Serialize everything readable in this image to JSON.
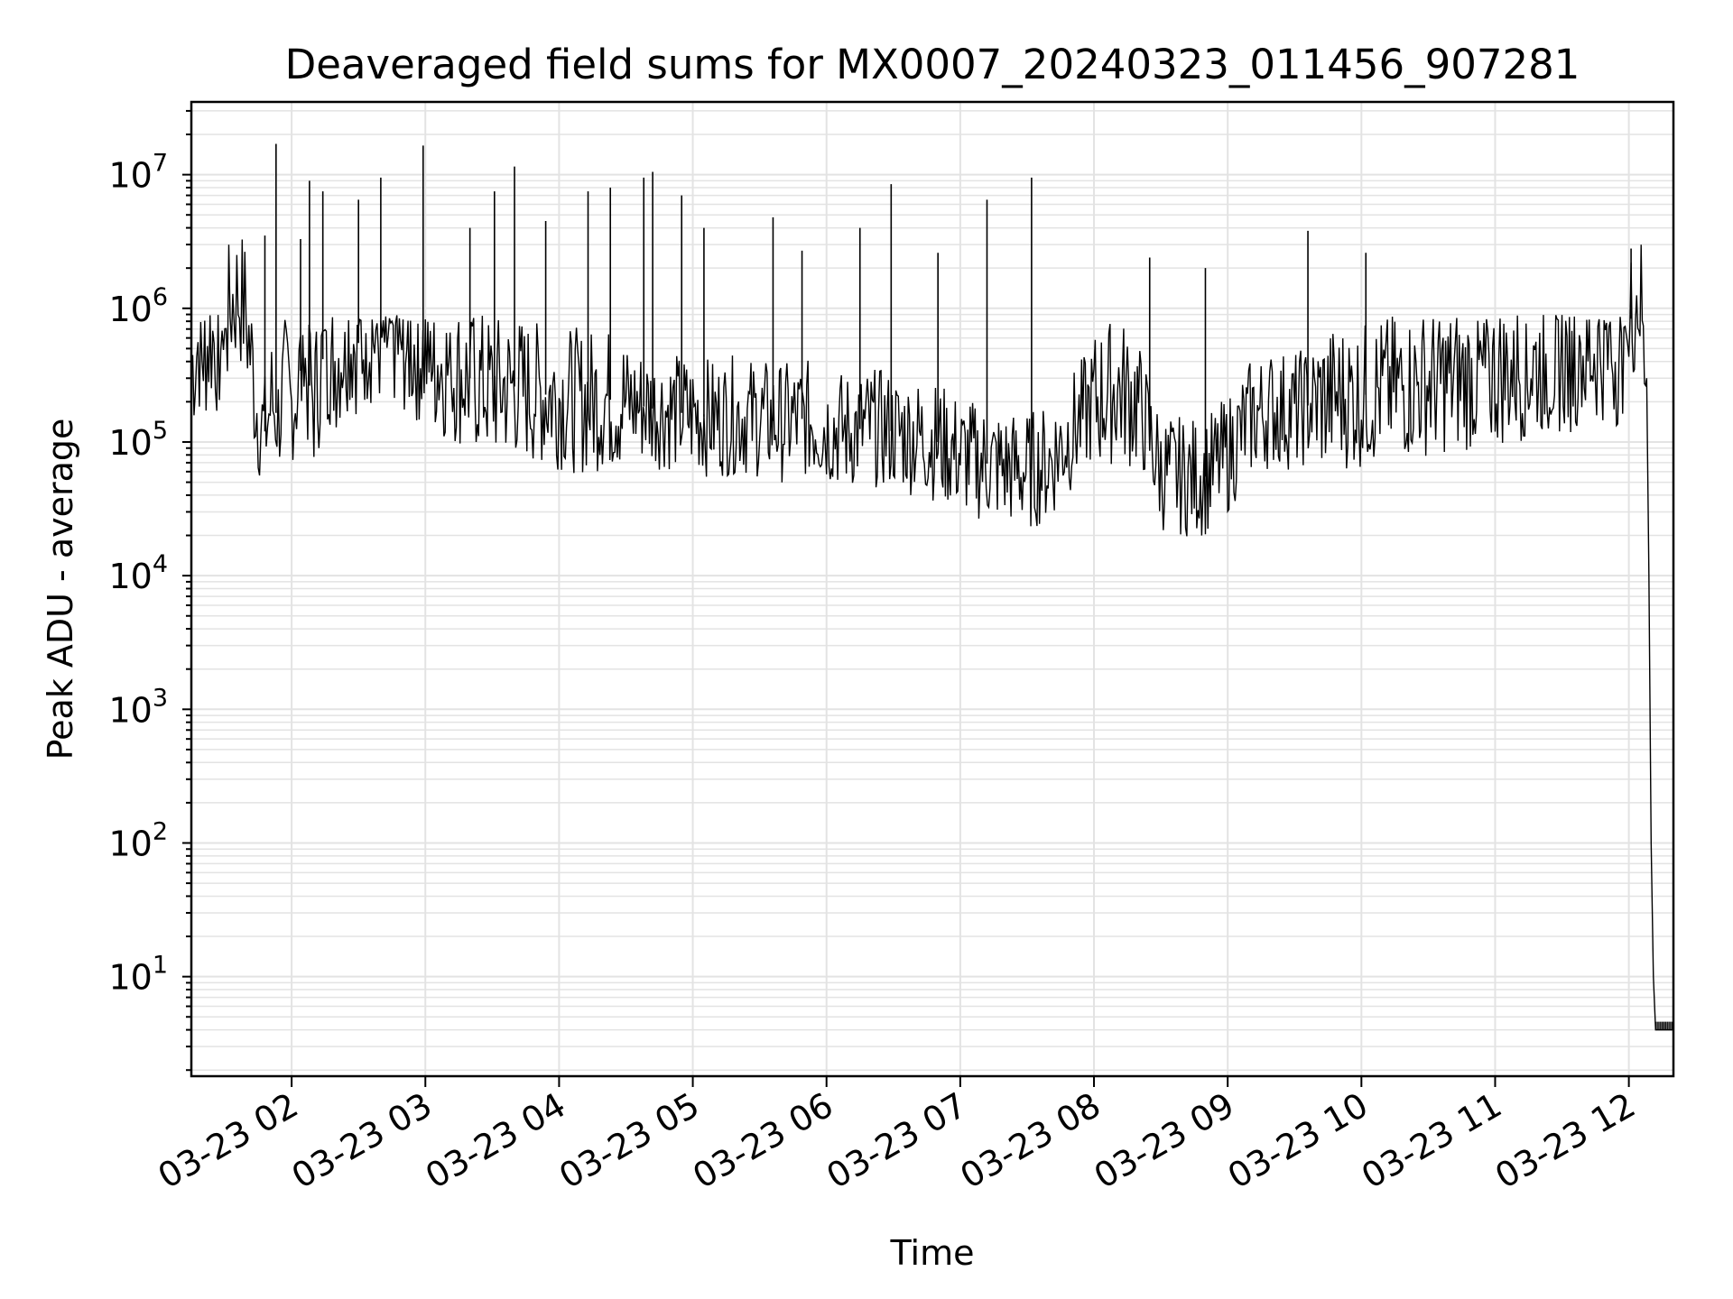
{
  "chart_data": {
    "type": "line",
    "title": "Deaveraged field sums for MX0007_20240323_011456_907281",
    "xlabel": "Time",
    "ylabel": "Peak ADU - average",
    "yscale": "log",
    "ylim": [
      1.8,
      35000000
    ],
    "xlim": [
      "2024-03-23 01:15",
      "2024-03-23 12:20"
    ],
    "grid": true,
    "x_ticks": [
      {
        "label": "03-23 02",
        "value": "2024-03-23 02:00"
      },
      {
        "label": "03-23 03",
        "value": "2024-03-23 03:00"
      },
      {
        "label": "03-23 04",
        "value": "2024-03-23 04:00"
      },
      {
        "label": "03-23 05",
        "value": "2024-03-23 05:00"
      },
      {
        "label": "03-23 06",
        "value": "2024-03-23 06:00"
      },
      {
        "label": "03-23 07",
        "value": "2024-03-23 07:00"
      },
      {
        "label": "03-23 08",
        "value": "2024-03-23 08:00"
      },
      {
        "label": "03-23 09",
        "value": "2024-03-23 09:00"
      },
      {
        "label": "03-23 10",
        "value": "2024-03-23 10:00"
      },
      {
        "label": "03-23 11",
        "value": "2024-03-23 11:00"
      },
      {
        "label": "03-23 12",
        "value": "2024-03-23 12:00"
      }
    ],
    "y_ticks": [
      {
        "base": "10",
        "exp": "1",
        "value": 10
      },
      {
        "base": "10",
        "exp": "2",
        "value": 100
      },
      {
        "base": "10",
        "exp": "3",
        "value": 1000
      },
      {
        "base": "10",
        "exp": "4",
        "value": 10000
      },
      {
        "base": "10",
        "exp": "5",
        "value": 100000
      },
      {
        "base": "10",
        "exp": "6",
        "value": 1000000
      },
      {
        "base": "10",
        "exp": "7",
        "value": 10000000
      }
    ],
    "line_color": "#000000",
    "series": [
      {
        "points": [
          [
            "2024-03-23 01:15",
            350000
          ],
          [
            "2024-03-23 01:18",
            550000
          ],
          [
            "2024-03-23 01:21",
            480000
          ],
          [
            "2024-03-23 01:24",
            600000
          ],
          [
            "2024-03-23 01:27",
            520000
          ],
          [
            "2024-03-23 01:30",
            620000
          ],
          [
            "2024-03-23 01:33",
            1100000
          ],
          [
            "2024-03-23 01:36",
            1300000
          ],
          [
            "2024-03-23 01:39",
            1000000
          ],
          [
            "2024-03-23 01:42",
            400000
          ],
          [
            "2024-03-23 01:45",
            150000
          ],
          [
            "2024-03-23 01:48",
            120000
          ],
          [
            "2024-03-23 01:51",
            200000
          ],
          [
            "2024-03-23 01:54",
            150000
          ],
          [
            "2024-03-23 01:57",
            250000
          ],
          [
            "2024-03-23 02:00",
            180000
          ],
          [
            "2024-03-23 02:05",
            400000
          ],
          [
            "2024-03-23 02:10",
            200000
          ],
          [
            "2024-03-23 02:15",
            500000
          ],
          [
            "2024-03-23 02:20",
            400000
          ],
          [
            "2024-03-23 02:25",
            600000
          ],
          [
            "2024-03-23 02:30",
            550000
          ],
          [
            "2024-03-23 02:35",
            650000
          ],
          [
            "2024-03-23 02:40",
            600000
          ],
          [
            "2024-03-23 02:45",
            650000
          ],
          [
            "2024-03-23 02:50",
            550000
          ],
          [
            "2024-03-23 02:55",
            500000
          ],
          [
            "2024-03-23 03:00",
            450000
          ],
          [
            "2024-03-23 03:10",
            350000
          ],
          [
            "2024-03-23 03:20",
            300000
          ],
          [
            "2024-03-23 03:30",
            250000
          ],
          [
            "2024-03-23 03:40",
            260000
          ],
          [
            "2024-03-23 03:50",
            230000
          ],
          [
            "2024-03-23 04:00",
            220000
          ],
          [
            "2024-03-23 04:10",
            200000
          ],
          [
            "2024-03-23 04:20",
            210000
          ],
          [
            "2024-03-23 04:30",
            200000
          ],
          [
            "2024-03-23 04:40",
            180000
          ],
          [
            "2024-03-23 04:50",
            170000
          ],
          [
            "2024-03-23 05:00",
            160000
          ],
          [
            "2024-03-23 05:10",
            150000
          ],
          [
            "2024-03-23 05:20",
            160000
          ],
          [
            "2024-03-23 05:30",
            150000
          ],
          [
            "2024-03-23 05:40",
            140000
          ],
          [
            "2024-03-23 05:50",
            150000
          ],
          [
            "2024-03-23 06:00",
            130000
          ],
          [
            "2024-03-23 06:10",
            120000
          ],
          [
            "2024-03-23 06:20",
            130000
          ],
          [
            "2024-03-23 06:30",
            120000
          ],
          [
            "2024-03-23 06:40",
            110000
          ],
          [
            "2024-03-23 06:50",
            100000
          ],
          [
            "2024-03-23 07:00",
            80000
          ],
          [
            "2024-03-23 07:10",
            70000
          ],
          [
            "2024-03-23 07:20",
            65000
          ],
          [
            "2024-03-23 07:30",
            60000
          ],
          [
            "2024-03-23 07:40",
            70000
          ],
          [
            "2024-03-23 07:50",
            120000
          ],
          [
            "2024-03-23 08:00",
            200000
          ],
          [
            "2024-03-23 08:10",
            250000
          ],
          [
            "2024-03-23 08:20",
            200000
          ],
          [
            "2024-03-23 08:30",
            60000
          ],
          [
            "2024-03-23 08:40",
            55000
          ],
          [
            "2024-03-23 08:50",
            55000
          ],
          [
            "2024-03-23 09:00",
            80000
          ],
          [
            "2024-03-23 09:10",
            150000
          ],
          [
            "2024-03-23 09:20",
            180000
          ],
          [
            "2024-03-23 09:30",
            170000
          ],
          [
            "2024-03-23 09:40",
            200000
          ],
          [
            "2024-03-23 09:50",
            220000
          ],
          [
            "2024-03-23 10:00",
            220000
          ],
          [
            "2024-03-23 10:10",
            250000
          ],
          [
            "2024-03-23 10:20",
            260000
          ],
          [
            "2024-03-23 10:30",
            280000
          ],
          [
            "2024-03-23 10:40",
            290000
          ],
          [
            "2024-03-23 10:50",
            300000
          ],
          [
            "2024-03-23 11:00",
            320000
          ],
          [
            "2024-03-23 11:10",
            350000
          ],
          [
            "2024-03-23 11:20",
            380000
          ],
          [
            "2024-03-23 11:30",
            400000
          ],
          [
            "2024-03-23 11:40",
            450000
          ],
          [
            "2024-03-23 11:50",
            500000
          ],
          [
            "2024-03-23 11:55",
            450000
          ],
          [
            "2024-03-23 12:00",
            700000
          ],
          [
            "2024-03-23 12:02",
            1000000
          ],
          [
            "2024-03-23 12:04",
            1300000
          ],
          [
            "2024-03-23 12:06",
            1000000
          ],
          [
            "2024-03-23 12:08",
            300000
          ],
          [
            "2024-03-23 12:09",
            10000
          ],
          [
            "2024-03-23 12:10",
            100
          ],
          [
            "2024-03-23 12:11",
            10
          ],
          [
            "2024-03-23 12:12",
            4
          ],
          [
            "2024-03-23 12:20",
            4
          ]
        ],
        "spikes": [
          [
            "2024-03-23 01:48",
            3500000
          ],
          [
            "2024-03-23 01:53",
            17000000
          ],
          [
            "2024-03-23 02:04",
            3300000
          ],
          [
            "2024-03-23 02:08",
            9000000
          ],
          [
            "2024-03-23 02:14",
            7500000
          ],
          [
            "2024-03-23 02:30",
            6500000
          ],
          [
            "2024-03-23 02:40",
            9500000
          ],
          [
            "2024-03-23 02:59",
            16500000
          ],
          [
            "2024-03-23 03:20",
            4000000
          ],
          [
            "2024-03-23 03:31",
            7500000
          ],
          [
            "2024-03-23 03:40",
            11500000
          ],
          [
            "2024-03-23 03:54",
            4500000
          ],
          [
            "2024-03-23 04:13",
            7500000
          ],
          [
            "2024-03-23 04:23",
            8000000
          ],
          [
            "2024-03-23 04:38",
            9500000
          ],
          [
            "2024-03-23 04:42",
            10500000
          ],
          [
            "2024-03-23 04:55",
            7000000
          ],
          [
            "2024-03-23 05:05",
            4000000
          ],
          [
            "2024-03-23 05:36",
            4800000
          ],
          [
            "2024-03-23 05:49",
            2700000
          ],
          [
            "2024-03-23 06:15",
            4000000
          ],
          [
            "2024-03-23 06:29",
            8500000
          ],
          [
            "2024-03-23 06:50",
            2600000
          ],
          [
            "2024-03-23 07:12",
            6500000
          ],
          [
            "2024-03-23 07:32",
            9500000
          ],
          [
            "2024-03-23 08:25",
            2400000
          ],
          [
            "2024-03-23 08:50",
            2000000
          ],
          [
            "2024-03-23 09:36",
            3800000
          ],
          [
            "2024-03-23 10:02",
            2600000
          ],
          [
            "2024-03-23 12:01",
            2800000
          ]
        ]
      }
    ]
  }
}
